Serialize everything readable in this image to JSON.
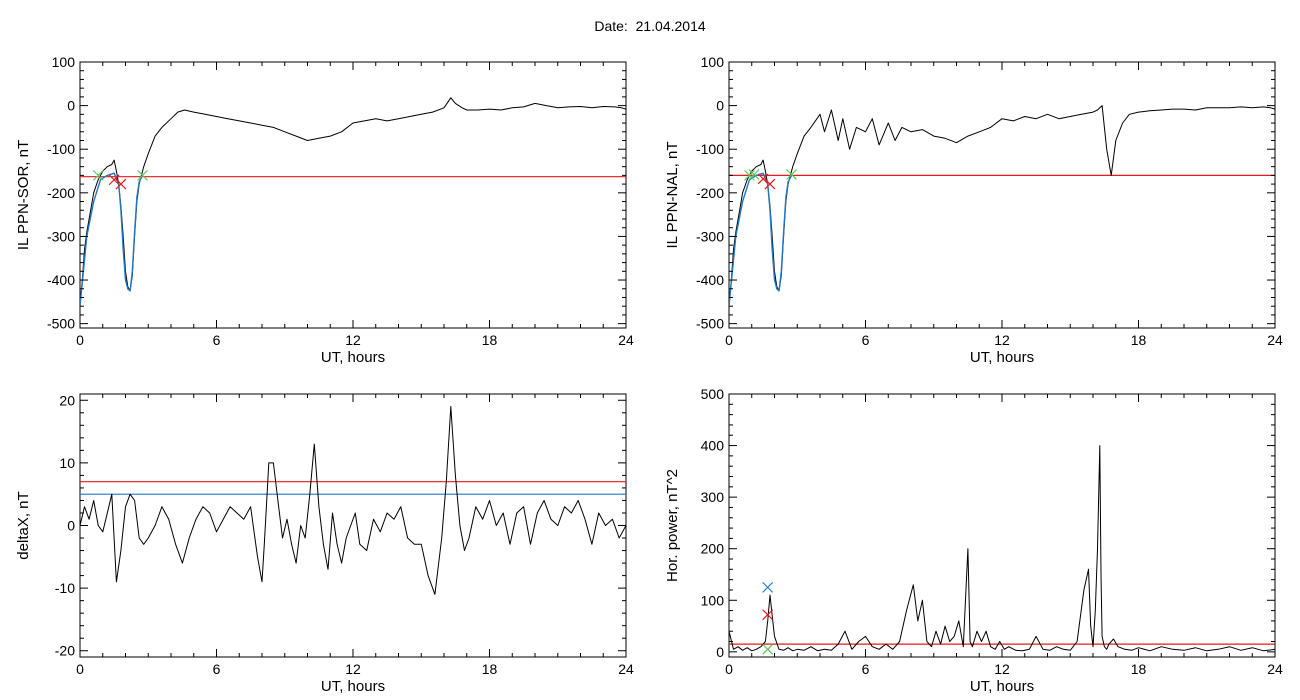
{
  "figure": {
    "date_label": "Date:",
    "date_value": "21.04.2014"
  },
  "colors": {
    "trace": "#000000",
    "threshold_red": "#e41a1c",
    "threshold_blue": "#1f78c8",
    "marker_green": "#5ac85a",
    "marker_red": "#e41a1c",
    "marker_blue": "#1f78c8"
  },
  "chart_data": [
    {
      "type": "line",
      "xlabel": "UT, hours",
      "ylabel": "IL PPN-SOR, nT",
      "xlim": [
        0,
        24
      ],
      "ylim": [
        -510,
        100
      ],
      "xticks": [
        0,
        6,
        12,
        18,
        24
      ],
      "yticks": [
        100,
        0,
        -100,
        -200,
        -300,
        -400,
        -500
      ],
      "series": [
        {
          "style": "black",
          "x": [
            0,
            0.1,
            0.2,
            0.3,
            0.4,
            0.5,
            0.6,
            0.7,
            0.8,
            0.9,
            1.0,
            1.2,
            1.4,
            1.5,
            1.6,
            1.7,
            1.8,
            1.9,
            2.0,
            2.1,
            2.2,
            2.3,
            2.4,
            2.5,
            2.6,
            2.7,
            2.8,
            3.0,
            3.3,
            3.6,
            4.0,
            4.3,
            4.6,
            5.0,
            5.5,
            6.0,
            6.5,
            7.0,
            7.5,
            8.0,
            8.5,
            9.0,
            9.5,
            10.0,
            10.5,
            11.0,
            11.5,
            12.0,
            12.5,
            13.0,
            13.5,
            14.0,
            14.5,
            15.0,
            15.5,
            16.0,
            16.3,
            16.5,
            16.8,
            17.0,
            17.5,
            18.0,
            18.5,
            19.0,
            19.5,
            20.0,
            20.5,
            21.0,
            21.5,
            22.0,
            22.5,
            23.0,
            23.5,
            23.8,
            24.0
          ],
          "y": [
            -460,
            -400,
            -330,
            -290,
            -260,
            -230,
            -200,
            -185,
            -170,
            -160,
            -150,
            -140,
            -135,
            -125,
            -150,
            -180,
            -230,
            -300,
            -380,
            -415,
            -425,
            -390,
            -300,
            -220,
            -180,
            -160,
            -140,
            -110,
            -70,
            -50,
            -30,
            -15,
            -10,
            -15,
            -20,
            -25,
            -30,
            -35,
            -40,
            -45,
            -50,
            -60,
            -70,
            -80,
            -75,
            -70,
            -60,
            -40,
            -35,
            -30,
            -35,
            -30,
            -25,
            -20,
            -15,
            -5,
            18,
            5,
            -5,
            -10,
            -10,
            -8,
            -10,
            -5,
            -3,
            5,
            0,
            -5,
            -3,
            -2,
            -5,
            -2,
            -3,
            -5,
            -8
          ]
        },
        {
          "style": "blue",
          "x": [
            0,
            0.3,
            0.6,
            0.9,
            1.2,
            1.5,
            1.7,
            1.8,
            1.9,
            2.0,
            2.1,
            2.2,
            2.3,
            2.4,
            2.5,
            2.6,
            2.75
          ],
          "y": [
            -460,
            -300,
            -220,
            -170,
            -160,
            -155,
            -180,
            -240,
            -330,
            -400,
            -420,
            -425,
            -380,
            -290,
            -210,
            -175,
            -160
          ]
        }
      ],
      "threshold_red": -163,
      "markers": [
        {
          "shape": "x",
          "color": "green",
          "x": 0.8,
          "y": -160
        },
        {
          "shape": "x",
          "color": "green",
          "x": 2.75,
          "y": -160
        },
        {
          "shape": "x",
          "color": "red",
          "x": 1.8,
          "y": -180
        },
        {
          "shape": "x",
          "color": "red",
          "x": 1.5,
          "y": -170
        }
      ]
    },
    {
      "type": "line",
      "xlabel": "UT, hours",
      "ylabel": "IL PPN-NAL, nT",
      "xlim": [
        0,
        24
      ],
      "ylim": [
        -510,
        100
      ],
      "xticks": [
        0,
        6,
        12,
        18,
        24
      ],
      "yticks": [
        100,
        0,
        -100,
        -200,
        -300,
        -400,
        -500
      ],
      "series": [
        {
          "style": "black",
          "x": [
            0,
            0.1,
            0.2,
            0.3,
            0.4,
            0.5,
            0.6,
            0.7,
            0.8,
            0.9,
            1.0,
            1.2,
            1.4,
            1.5,
            1.6,
            1.7,
            1.8,
            1.9,
            2.0,
            2.1,
            2.2,
            2.3,
            2.4,
            2.5,
            2.6,
            2.7,
            2.8,
            3.0,
            3.3,
            3.6,
            4.0,
            4.2,
            4.5,
            4.8,
            5.0,
            5.3,
            5.6,
            6.0,
            6.3,
            6.6,
            7.0,
            7.3,
            7.6,
            8.0,
            8.5,
            9.0,
            9.5,
            10.0,
            10.5,
            11.0,
            11.5,
            12.0,
            12.5,
            13.0,
            13.5,
            14.0,
            14.5,
            15.0,
            15.5,
            16.0,
            16.2,
            16.4,
            16.6,
            16.8,
            17.0,
            17.3,
            17.6,
            18.0,
            18.5,
            19.0,
            19.5,
            20.0,
            20.5,
            21.0,
            21.5,
            22.0,
            22.5,
            23.0,
            23.5,
            23.8,
            24.0
          ],
          "y": [
            -460,
            -400,
            -330,
            -290,
            -260,
            -230,
            -200,
            -185,
            -170,
            -160,
            -150,
            -140,
            -135,
            -125,
            -150,
            -180,
            -230,
            -300,
            -380,
            -415,
            -425,
            -390,
            -300,
            -220,
            -180,
            -160,
            -140,
            -110,
            -70,
            -50,
            -20,
            -60,
            -10,
            -80,
            -30,
            -100,
            -50,
            -60,
            -30,
            -90,
            -40,
            -80,
            -50,
            -60,
            -55,
            -70,
            -75,
            -85,
            -70,
            -60,
            -50,
            -30,
            -35,
            -25,
            -30,
            -20,
            -30,
            -25,
            -20,
            -15,
            -10,
            0,
            -100,
            -160,
            -80,
            -40,
            -20,
            -15,
            -12,
            -10,
            -8,
            -8,
            -10,
            -5,
            -5,
            -5,
            -3,
            -5,
            -3,
            -5,
            -8
          ]
        },
        {
          "style": "blue",
          "x": [
            0,
            0.3,
            0.6,
            0.9,
            1.2,
            1.5,
            1.7,
            1.8,
            1.9,
            2.0,
            2.1,
            2.2,
            2.3,
            2.4,
            2.5,
            2.6,
            2.75
          ],
          "y": [
            -460,
            -300,
            -220,
            -170,
            -160,
            -155,
            -180,
            -240,
            -330,
            -400,
            -420,
            -425,
            -380,
            -290,
            -210,
            -175,
            -160
          ]
        }
      ],
      "threshold_red": -160,
      "markers": [
        {
          "shape": "x",
          "color": "green",
          "x": 0.9,
          "y": -160
        },
        {
          "shape": "x",
          "color": "green",
          "x": 1.1,
          "y": -158
        },
        {
          "shape": "x",
          "color": "green",
          "x": 2.75,
          "y": -158
        },
        {
          "shape": "x",
          "color": "red",
          "x": 1.8,
          "y": -180
        },
        {
          "shape": "x",
          "color": "red",
          "x": 1.5,
          "y": -168
        }
      ]
    },
    {
      "type": "line",
      "xlabel": "UT, hours",
      "ylabel": "deltaX, nT",
      "xlim": [
        0,
        24
      ],
      "ylim": [
        -21,
        21
      ],
      "xticks": [
        0,
        6,
        12,
        18,
        24
      ],
      "yticks": [
        20,
        10,
        0,
        -10,
        -20
      ],
      "series": [
        {
          "style": "black",
          "x": [
            0,
            0.2,
            0.4,
            0.6,
            0.8,
            1.0,
            1.2,
            1.4,
            1.5,
            1.6,
            1.8,
            2.0,
            2.2,
            2.4,
            2.6,
            2.8,
            3.0,
            3.3,
            3.6,
            3.9,
            4.2,
            4.5,
            4.8,
            5.1,
            5.4,
            5.7,
            6.0,
            6.3,
            6.6,
            6.9,
            7.2,
            7.5,
            7.8,
            8.0,
            8.1,
            8.3,
            8.5,
            8.7,
            8.9,
            9.1,
            9.3,
            9.5,
            9.7,
            9.9,
            10.1,
            10.3,
            10.5,
            10.7,
            10.9,
            11.1,
            11.3,
            11.5,
            11.7,
            11.9,
            12.1,
            12.3,
            12.6,
            12.9,
            13.2,
            13.5,
            13.8,
            14.1,
            14.4,
            14.7,
            15.0,
            15.3,
            15.6,
            15.9,
            16.1,
            16.3,
            16.5,
            16.7,
            16.9,
            17.1,
            17.4,
            17.7,
            18.0,
            18.3,
            18.6,
            18.9,
            19.2,
            19.5,
            19.8,
            20.1,
            20.4,
            20.7,
            21.0,
            21.3,
            21.6,
            21.9,
            22.2,
            22.5,
            22.8,
            23.1,
            23.4,
            23.7,
            24.0
          ],
          "y": [
            0,
            3,
            1,
            4,
            0,
            -1,
            2,
            5,
            -2,
            -9,
            -4,
            3,
            5,
            4,
            -2,
            -3,
            -2,
            0,
            3,
            1,
            -3,
            -6,
            -2,
            1,
            3,
            2,
            -1,
            1,
            3,
            2,
            1,
            3,
            -5,
            -9,
            -3,
            10,
            10,
            4,
            -2,
            1,
            -3,
            -6,
            0,
            -2,
            5,
            13,
            3,
            -3,
            -7,
            2,
            -3,
            -6,
            -2,
            0,
            2,
            -3,
            -4,
            1,
            -1,
            2,
            1,
            3,
            -2,
            -3,
            -3,
            -8,
            -11,
            -2,
            7,
            19,
            8,
            0,
            -4,
            -2,
            3,
            1,
            4,
            0,
            2,
            -3,
            2,
            3,
            -3,
            2,
            4,
            1,
            0,
            3,
            2,
            4,
            1,
            -3,
            2,
            0,
            1,
            -2,
            0
          ]
        }
      ],
      "threshold_red": 7,
      "threshold_blue": 5
    },
    {
      "type": "line",
      "xlabel": "UT, hours",
      "ylabel": "Hor. power, nT^2",
      "xlim": [
        0,
        24
      ],
      "ylim": [
        -10,
        500
      ],
      "xticks": [
        0,
        6,
        12,
        18,
        24
      ],
      "yticks": [
        500,
        400,
        300,
        200,
        100,
        0
      ],
      "series": [
        {
          "style": "black",
          "x": [
            0,
            0.2,
            0.4,
            0.6,
            0.8,
            1.0,
            1.2,
            1.4,
            1.6,
            1.7,
            1.8,
            1.9,
            2.0,
            2.2,
            2.4,
            2.6,
            2.8,
            3.0,
            3.3,
            3.6,
            3.9,
            4.2,
            4.5,
            4.8,
            5.1,
            5.4,
            5.7,
            6.0,
            6.3,
            6.6,
            6.9,
            7.2,
            7.5,
            7.8,
            8.1,
            8.3,
            8.5,
            8.7,
            8.9,
            9.1,
            9.3,
            9.5,
            9.7,
            9.9,
            10.1,
            10.3,
            10.5,
            10.6,
            10.7,
            10.9,
            11.1,
            11.3,
            11.5,
            11.7,
            11.9,
            12.1,
            12.3,
            12.6,
            12.9,
            13.2,
            13.5,
            13.8,
            14.1,
            14.4,
            14.7,
            15.0,
            15.3,
            15.6,
            15.8,
            15.9,
            16.0,
            16.1,
            16.2,
            16.3,
            16.35,
            16.4,
            16.5,
            16.6,
            16.7,
            16.9,
            17.1,
            17.4,
            17.7,
            18.0,
            18.5,
            19.0,
            19.5,
            20.0,
            20.5,
            21.0,
            21.5,
            22.0,
            22.5,
            23.0,
            23.5,
            24.0
          ],
          "y": [
            40,
            5,
            10,
            3,
            8,
            2,
            5,
            10,
            20,
            60,
            110,
            70,
            30,
            5,
            3,
            8,
            2,
            5,
            3,
            10,
            2,
            5,
            3,
            15,
            40,
            5,
            20,
            30,
            10,
            5,
            15,
            5,
            20,
            80,
            130,
            60,
            100,
            20,
            10,
            40,
            15,
            50,
            20,
            30,
            60,
            10,
            200,
            20,
            10,
            40,
            20,
            40,
            10,
            5,
            20,
            5,
            10,
            3,
            2,
            5,
            30,
            5,
            3,
            10,
            5,
            3,
            20,
            120,
            160,
            50,
            10,
            80,
            200,
            400,
            150,
            30,
            10,
            5,
            15,
            25,
            10,
            5,
            3,
            8,
            2,
            10,
            5,
            3,
            8,
            2,
            5,
            10,
            3,
            8,
            2,
            5
          ]
        }
      ],
      "threshold_red": 15,
      "markers": [
        {
          "shape": "x",
          "color": "blue",
          "x": 1.7,
          "y": 125
        },
        {
          "shape": "x",
          "color": "red",
          "x": 1.7,
          "y": 72
        },
        {
          "shape": "x",
          "color": "green",
          "x": 1.7,
          "y": 5
        }
      ]
    }
  ]
}
